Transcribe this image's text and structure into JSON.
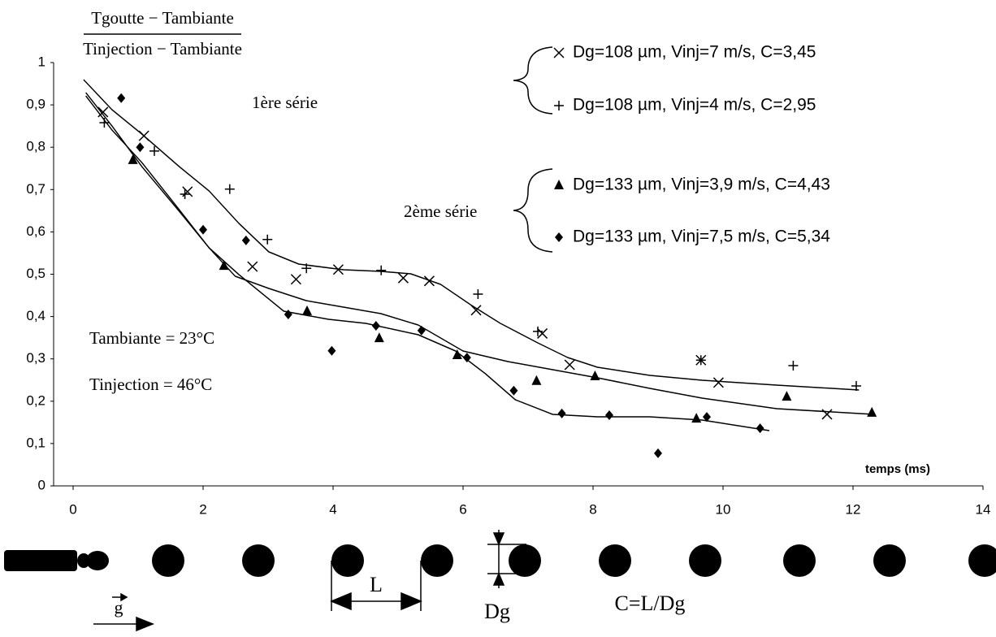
{
  "chart_data": {
    "type": "scatter",
    "y_label_numerator": "Tgoutte − Tambiante",
    "y_label_denominator": "Tinjection − Tambiante",
    "x_label": "temps (ms)",
    "xlim": [
      0,
      14
    ],
    "xticks": [
      0,
      2,
      4,
      6,
      8,
      10,
      12,
      14
    ],
    "ylim": [
      0,
      1
    ],
    "yticks": [
      0,
      {
        "value": 0.1,
        "label": "0,1"
      },
      {
        "value": 0.2,
        "label": "0,2"
      },
      {
        "value": 0.3,
        "label": "0,3"
      },
      {
        "value": 0.4,
        "label": "0,4"
      },
      {
        "value": 0.5,
        "label": "0,5"
      },
      {
        "value": 0.6,
        "label": "0,6"
      },
      {
        "value": 0.7,
        "label": "0,7"
      },
      {
        "value": 0.8,
        "label": "0,8"
      },
      {
        "value": 0.9,
        "label": "0,9"
      },
      1
    ],
    "groups": [
      "1ère série",
      "2ème série"
    ],
    "series": [
      {
        "name": "Dg=108 µm, Vinj=7 m/s, C=3,45",
        "marker": "x",
        "color": "#000000",
        "x": [
          0.46,
          1.09,
          1.76,
          2.76,
          3.43,
          4.08,
          5.08,
          5.48,
          6.2,
          7.22,
          7.64,
          9.66,
          9.93,
          11.6
        ],
        "values": [
          0.883,
          0.827,
          0.695,
          0.518,
          0.488,
          0.511,
          0.491,
          0.484,
          0.415,
          0.36,
          0.286,
          0.297,
          0.244,
          0.169
        ]
      },
      {
        "name": "Dg=108 µm, Vinj=4 m/s, C=2,95",
        "marker": "plus",
        "color": "#000000",
        "x": [
          0.48,
          1.25,
          1.72,
          2.41,
          2.99,
          3.59,
          4.74,
          6.23,
          7.15,
          9.66,
          11.08,
          12.05
        ],
        "values": [
          0.858,
          0.791,
          0.689,
          0.701,
          0.582,
          0.514,
          0.509,
          0.453,
          0.365,
          0.297,
          0.284,
          0.236
        ]
      },
      {
        "name": "Dg=133 µm, Vinj=3,9 m/s, C=4,43",
        "marker": "triangle",
        "color": "#000000",
        "x": [
          0.92,
          2.32,
          3.6,
          4.71,
          5.91,
          7.13,
          8.03,
          9.59,
          10.98,
          12.29
        ],
        "values": [
          0.77,
          0.52,
          0.413,
          0.349,
          0.309,
          0.248,
          0.259,
          0.159,
          0.211,
          0.173
        ]
      },
      {
        "name": "Dg=133 µm, Vinj=7,5 m/s, C=5,34",
        "marker": "diamond",
        "color": "#000000",
        "x": [
          0.74,
          1.03,
          2.0,
          2.66,
          3.31,
          3.98,
          4.66,
          5.36,
          6.06,
          6.78,
          7.52,
          8.25,
          9.0,
          9.75,
          10.57
        ],
        "values": [
          0.916,
          0.8,
          0.605,
          0.58,
          0.405,
          0.319,
          0.378,
          0.367,
          0.303,
          0.225,
          0.171,
          0.167,
          0.077,
          0.163,
          0.136
        ]
      }
    ],
    "annotations": [
      "Tambiante = 23°C",
      "Tinjection = 46°C"
    ],
    "diagram_labels": [
      "L",
      "Dg",
      "C=L/Dg",
      "g"
    ]
  }
}
